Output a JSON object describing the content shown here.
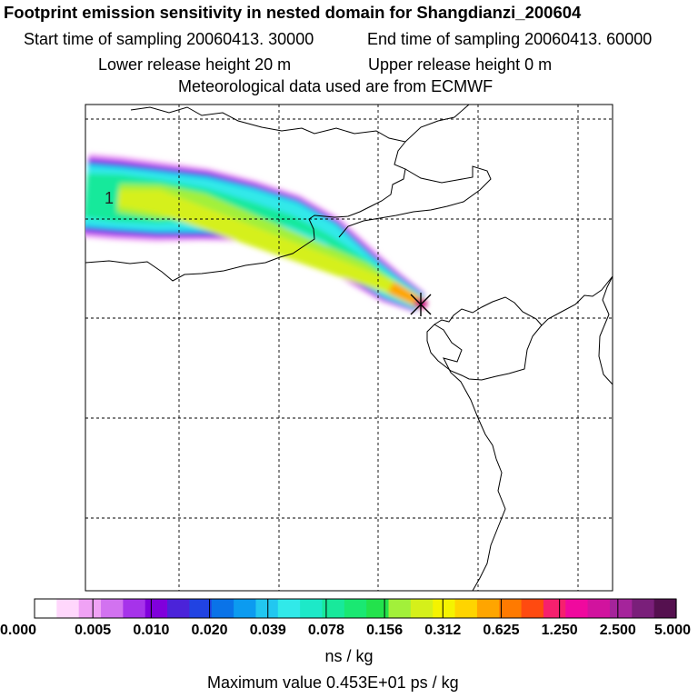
{
  "header": {
    "title": "Footprint emission sensitivity in nested domain for Shangdianzi_200604",
    "start_time": "Start time of sampling 20060413. 30000",
    "end_time": "End time of sampling 20060413. 60000",
    "lower_height": "Lower release height   20 m",
    "upper_height": "Upper release height    0 m",
    "met_data": "Meteorological data used are from ECMWF"
  },
  "map": {
    "contour_label": "1",
    "station_marker": "Shangdianzi"
  },
  "chart_data": {
    "type": "heatmap",
    "title": "Footprint emission sensitivity in nested domain for Shangdianzi_200604",
    "colorbar": {
      "ticks": [
        "0.000",
        "0.005",
        "0.010",
        "0.020",
        "0.039",
        "0.078",
        "0.156",
        "0.312",
        "0.625",
        "1.250",
        "2.500",
        "5.000"
      ],
      "unit": "ns / kg",
      "colors": [
        "#ffffff",
        "#ffd7fc",
        "#f0a2f5",
        "#d272f0",
        "#a633ea",
        "#8000dc",
        "#4b23d9",
        "#2143e2",
        "#0a73e8",
        "#0c9bf0",
        "#22c7f0",
        "#31e9e9",
        "#1de9c8",
        "#18e99b",
        "#1ae872",
        "#23e24c",
        "#a2f03a",
        "#d5f01a",
        "#f5f300",
        "#ffd400",
        "#ffa500",
        "#ff7a00",
        "#ff4a10",
        "#f6206e",
        "#f0099e",
        "#d1139e",
        "#a5249b",
        "#7a1f7a",
        "#55104f"
      ]
    },
    "max_value": "Maximum value  0.453E+01 ps / kg",
    "plume_levels": [
      {
        "level": "0.000",
        "color": "#f0a2f5"
      },
      {
        "level": "0.005",
        "color": "#a633ea"
      },
      {
        "level": "0.010",
        "color": "#2143e2"
      },
      {
        "level": "0.020",
        "color": "#22c7f0"
      },
      {
        "level": "0.039",
        "color": "#31e9e9"
      },
      {
        "level": "0.078",
        "color": "#18e99b"
      },
      {
        "level": "0.156",
        "color": "#a2f03a"
      },
      {
        "level": "0.312",
        "color": "#d5f01a"
      },
      {
        "level": "0.625",
        "color": "#ffa500"
      },
      {
        "level": "2.500",
        "color": "#f6206e"
      }
    ]
  }
}
